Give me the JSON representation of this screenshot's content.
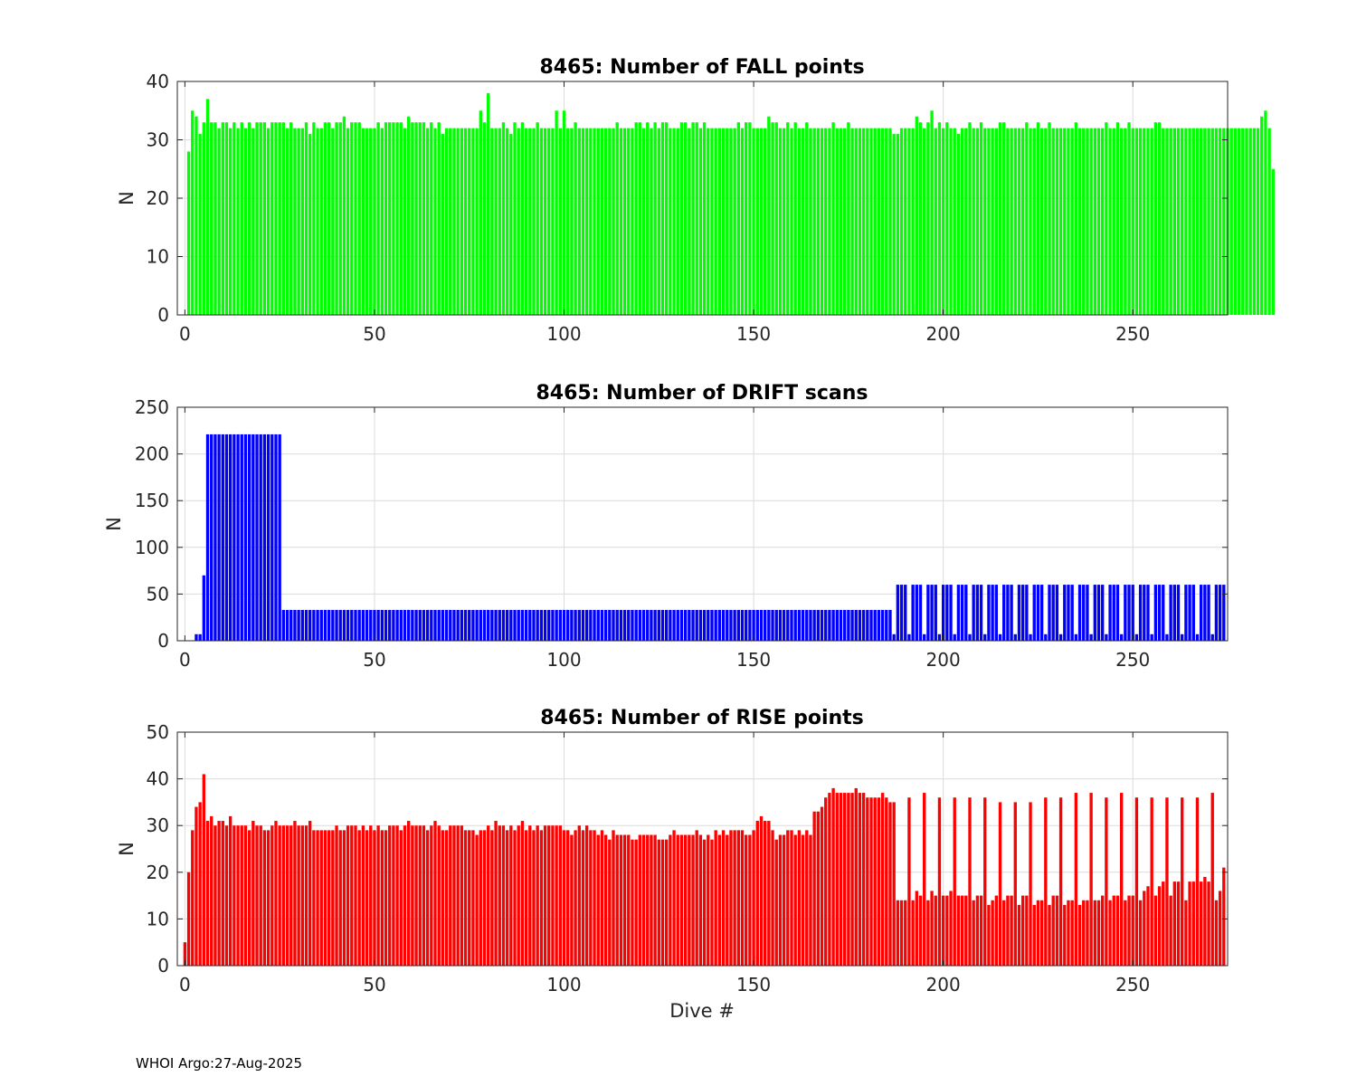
{
  "footer": "WHOI Argo:27-Aug-2025",
  "chart_data": [
    {
      "type": "bar",
      "title": "8465: Number of FALL points",
      "xlabel": "",
      "ylabel": "N",
      "xlim": [
        -2,
        275
      ],
      "ylim": [
        0,
        40
      ],
      "xticks": [
        0,
        50,
        100,
        150,
        200,
        250
      ],
      "yticks": [
        0,
        10,
        20,
        30,
        40
      ],
      "grid": true,
      "color": "#00ff00",
      "x_start": 1,
      "values": [
        28,
        35,
        34,
        31,
        33,
        37,
        33,
        33,
        32,
        33,
        33,
        32,
        33,
        32,
        33,
        32,
        33,
        32,
        33,
        33,
        33,
        32,
        33,
        33,
        33,
        33,
        32,
        33,
        32,
        32,
        32,
        33,
        31,
        33,
        32,
        32,
        33,
        33,
        32,
        33,
        33,
        34,
        32,
        33,
        33,
        33,
        32,
        32,
        32,
        32,
        33,
        32,
        33,
        33,
        33,
        33,
        33,
        32,
        34,
        33,
        33,
        33,
        33,
        32,
        33,
        32,
        33,
        31,
        32,
        32,
        32,
        32,
        32,
        32,
        32,
        32,
        32,
        35,
        33,
        38,
        32,
        32,
        32,
        33,
        32,
        31,
        33,
        32,
        33,
        32,
        32,
        32,
        33,
        32,
        32,
        32,
        32,
        35,
        32,
        35,
        32,
        32,
        33,
        32,
        32,
        32,
        32,
        32,
        32,
        32,
        32,
        32,
        32,
        33,
        32,
        32,
        32,
        32,
        33,
        33,
        32,
        33,
        32,
        33,
        32,
        33,
        33,
        32,
        32,
        32,
        33,
        33,
        32,
        33,
        33,
        32,
        33,
        32,
        32,
        32,
        32,
        32,
        32,
        32,
        32,
        33,
        32,
        33,
        33,
        32,
        32,
        32,
        32,
        34,
        33,
        33,
        32,
        32,
        33,
        32,
        33,
        32,
        32,
        33,
        32,
        32,
        32,
        32,
        32,
        32,
        33,
        32,
        32,
        32,
        33,
        32,
        32,
        32,
        32,
        32,
        32,
        32,
        32,
        32,
        32,
        32,
        31,
        31,
        32,
        32,
        32,
        32,
        34,
        33,
        32,
        33,
        35,
        32,
        33,
        32,
        33,
        32,
        32,
        31,
        32,
        32,
        33,
        32,
        32,
        33,
        32,
        32,
        32,
        32,
        33,
        33,
        32,
        32,
        32,
        32,
        32,
        33,
        32,
        32,
        33,
        32,
        32,
        33,
        32,
        32,
        32,
        32,
        32,
        32,
        33,
        32,
        32,
        32,
        32,
        32,
        32,
        32,
        33,
        32,
        32,
        33,
        32,
        32,
        33,
        32,
        32,
        32,
        32,
        32,
        32,
        33,
        33,
        32,
        32,
        32,
        32,
        32,
        32,
        32,
        32,
        32,
        32,
        32,
        32,
        32,
        32,
        32,
        32,
        32,
        32,
        32,
        32,
        32,
        32,
        32,
        32,
        32,
        32,
        34,
        35,
        32,
        25
      ]
    },
    {
      "type": "bar",
      "title": "8465: Number of DRIFT scans",
      "xlabel": "",
      "ylabel": "N",
      "xlim": [
        -2,
        275
      ],
      "ylim": [
        0,
        250
      ],
      "xticks": [
        0,
        50,
        100,
        150,
        200,
        250
      ],
      "yticks": [
        0,
        50,
        100,
        150,
        200,
        250
      ],
      "grid": true,
      "color": "#0000ff",
      "x_start": 1,
      "values": [
        0,
        0,
        7,
        7,
        70,
        221,
        221,
        221,
        221,
        221,
        221,
        221,
        221,
        221,
        221,
        221,
        221,
        221,
        221,
        221,
        221,
        221,
        221,
        221,
        221,
        33,
        33,
        33,
        33,
        33,
        33,
        33,
        33,
        33,
        33,
        33,
        33,
        33,
        33,
        33,
        33,
        33,
        33,
        33,
        33,
        33,
        33,
        33,
        33,
        33,
        33,
        33,
        33,
        33,
        33,
        33,
        33,
        33,
        33,
        33,
        33,
        33,
        33,
        33,
        33,
        33,
        33,
        33,
        33,
        33,
        33,
        33,
        33,
        33,
        33,
        33,
        33,
        33,
        33,
        33,
        33,
        33,
        33,
        33,
        33,
        33,
        33,
        33,
        33,
        33,
        33,
        33,
        33,
        33,
        33,
        33,
        33,
        33,
        33,
        33,
        33,
        33,
        33,
        33,
        33,
        33,
        33,
        33,
        33,
        33,
        33,
        33,
        33,
        33,
        33,
        33,
        33,
        33,
        33,
        33,
        33,
        33,
        33,
        33,
        33,
        33,
        33,
        33,
        33,
        33,
        33,
        33,
        33,
        33,
        33,
        33,
        33,
        33,
        33,
        33,
        33,
        33,
        33,
        33,
        33,
        33,
        33,
        33,
        33,
        33,
        33,
        33,
        33,
        33,
        33,
        33,
        33,
        33,
        33,
        33,
        33,
        33,
        33,
        33,
        33,
        33,
        33,
        33,
        33,
        33,
        33,
        33,
        33,
        33,
        33,
        33,
        33,
        33,
        33,
        33,
        33,
        33,
        33,
        33,
        33,
        33,
        7,
        60,
        60,
        60,
        7,
        60,
        60,
        60,
        7,
        60,
        60,
        60,
        7,
        60,
        60,
        60,
        7,
        60,
        60,
        60,
        7,
        60,
        60,
        60,
        7,
        60,
        60,
        60,
        7,
        60,
        60,
        60,
        7,
        60,
        60,
        60,
        7,
        60,
        60,
        60,
        7,
        60,
        60,
        60,
        7,
        60,
        60,
        60,
        7,
        60,
        60,
        60,
        7,
        60,
        60,
        60,
        7,
        60,
        60,
        60,
        7,
        60,
        60,
        60,
        7,
        60,
        60,
        60,
        7,
        60,
        60,
        60,
        7,
        60,
        60,
        60,
        7,
        60,
        60,
        60,
        7,
        60,
        60,
        60,
        7,
        60,
        60,
        60
      ]
    },
    {
      "type": "bar",
      "title": "8465: Number of RISE points",
      "xlabel": "Dive #",
      "ylabel": "N",
      "xlim": [
        -2,
        275
      ],
      "ylim": [
        0,
        50
      ],
      "xticks": [
        0,
        50,
        100,
        150,
        200,
        250
      ],
      "yticks": [
        0,
        10,
        20,
        30,
        40,
        50
      ],
      "grid": true,
      "color": "#ff0000",
      "x_start": 0,
      "values": [
        5,
        20,
        29,
        34,
        35,
        41,
        31,
        32,
        30,
        31,
        31,
        30,
        32,
        30,
        30,
        30,
        30,
        29,
        31,
        30,
        30,
        29,
        29,
        30,
        31,
        30,
        30,
        30,
        30,
        31,
        30,
        30,
        30,
        31,
        29,
        29,
        29,
        29,
        29,
        29,
        30,
        29,
        29,
        30,
        30,
        30,
        29,
        30,
        29,
        30,
        29,
        30,
        29,
        29,
        30,
        30,
        30,
        29,
        30,
        31,
        30,
        30,
        30,
        30,
        29,
        30,
        31,
        30,
        29,
        29,
        30,
        30,
        30,
        30,
        29,
        29,
        29,
        28,
        29,
        29,
        30,
        29,
        31,
        30,
        30,
        29,
        30,
        29,
        30,
        31,
        29,
        30,
        29,
        30,
        29,
        30,
        30,
        30,
        30,
        30,
        29,
        29,
        28,
        29,
        30,
        29,
        30,
        29,
        29,
        28,
        29,
        28,
        27,
        29,
        28,
        28,
        28,
        28,
        27,
        27,
        28,
        28,
        28,
        28,
        28,
        27,
        27,
        27,
        28,
        29,
        28,
        28,
        28,
        28,
        28,
        29,
        28,
        27,
        28,
        27,
        29,
        28,
        29,
        28,
        29,
        29,
        29,
        29,
        28,
        28,
        29,
        31,
        32,
        31,
        31,
        29,
        27,
        28,
        28,
        29,
        29,
        28,
        29,
        28,
        29,
        28,
        33,
        33,
        34,
        36,
        37,
        38,
        37,
        37,
        37,
        37,
        37,
        38,
        37,
        37,
        36,
        36,
        36,
        36,
        37,
        36,
        35,
        35,
        14,
        14,
        14,
        36,
        14,
        16,
        15,
        37,
        14,
        16,
        15,
        36,
        15,
        15,
        16,
        36,
        15,
        15,
        15,
        36,
        14,
        15,
        15,
        36,
        13,
        14,
        15,
        35,
        14,
        15,
        15,
        35,
        13,
        15,
        15,
        35,
        13,
        14,
        14,
        36,
        13,
        15,
        15,
        36,
        13,
        14,
        14,
        37,
        13,
        14,
        14,
        37,
        14,
        14,
        15,
        36,
        14,
        15,
        15,
        37,
        14,
        15,
        15,
        36,
        14,
        16,
        17,
        36,
        15,
        17,
        18,
        36,
        15,
        18,
        18,
        36,
        14,
        18,
        18,
        36,
        18,
        19,
        18,
        37,
        14,
        16,
        21
      ]
    }
  ]
}
